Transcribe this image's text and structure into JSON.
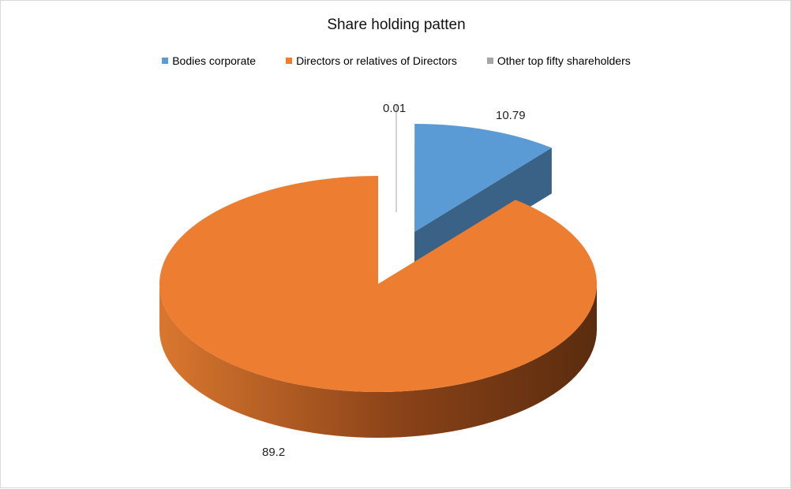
{
  "chart_data": {
    "type": "pie",
    "style": "3d-exploded",
    "title": "Share holding patten",
    "legend_position": "top",
    "slices": [
      {
        "name": "Bodies corporate",
        "value": 10.79,
        "label": "10.79",
        "color": "#5B9BD5",
        "exploded": true
      },
      {
        "name": "Directors or relatives of Directors",
        "value": 89.2,
        "label": "89.2",
        "color": "#ED7D31",
        "exploded": false
      },
      {
        "name": "Other top fifty shareholders",
        "value": 0.01,
        "label": "0.01",
        "color": "#A5A5A5",
        "exploded": true
      }
    ]
  }
}
